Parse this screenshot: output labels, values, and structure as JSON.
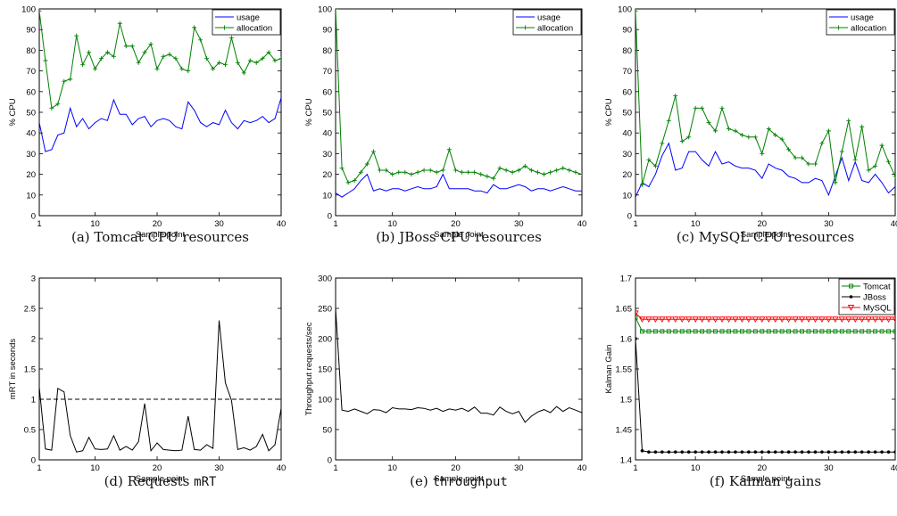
{
  "chart_data": [
    {
      "type": "line",
      "caption": "(a) Tomcat CPU resources",
      "xlabel": "Sample point",
      "ylabel": "% CPU",
      "xlim": [
        1,
        40
      ],
      "ylim": [
        0,
        100
      ],
      "xticks": [
        1,
        10,
        20,
        30,
        40
      ],
      "yticks": [
        0,
        10,
        20,
        30,
        40,
        50,
        60,
        70,
        80,
        90,
        100
      ],
      "legend_position": "top-right",
      "x": [
        1,
        2,
        3,
        4,
        5,
        6,
        7,
        8,
        9,
        10,
        11,
        12,
        13,
        14,
        15,
        16,
        17,
        18,
        19,
        20,
        21,
        22,
        23,
        24,
        25,
        26,
        27,
        28,
        29,
        30,
        31,
        32,
        33,
        34,
        35,
        36,
        37,
        38,
        39,
        40
      ],
      "series": [
        {
          "name": "usage",
          "color": "#0000ff",
          "marker": "none",
          "values": [
            45,
            31,
            32,
            39,
            40,
            52,
            43,
            47,
            42,
            45,
            47,
            46,
            56,
            49,
            49,
            44,
            47,
            48,
            43,
            46,
            47,
            46,
            43,
            42,
            55,
            51,
            45,
            43,
            45,
            44,
            51,
            45,
            42,
            46,
            45,
            46,
            48,
            45,
            47,
            57
          ]
        },
        {
          "name": "allocation",
          "color": "#008000",
          "marker": "plus",
          "values": [
            99,
            75,
            52,
            54,
            65,
            66,
            87,
            73,
            79,
            71,
            76,
            79,
            77,
            93,
            82,
            82,
            74,
            79,
            83,
            71,
            77,
            78,
            76,
            71,
            70,
            91,
            85,
            76,
            71,
            74,
            73,
            86,
            74,
            69,
            75,
            74,
            76,
            79,
            75,
            76
          ]
        }
      ]
    },
    {
      "type": "line",
      "caption": "(b) JBoss CPU resources",
      "xlabel": "Sample point",
      "ylabel": "% CPU",
      "xlim": [
        1,
        40
      ],
      "ylim": [
        0,
        100
      ],
      "xticks": [
        1,
        10,
        20,
        30,
        40
      ],
      "yticks": [
        0,
        10,
        20,
        30,
        40,
        50,
        60,
        70,
        80,
        90,
        100
      ],
      "legend_position": "top-right",
      "x": [
        1,
        2,
        3,
        4,
        5,
        6,
        7,
        8,
        9,
        10,
        11,
        12,
        13,
        14,
        15,
        16,
        17,
        18,
        19,
        20,
        21,
        22,
        23,
        24,
        25,
        26,
        27,
        28,
        29,
        30,
        31,
        32,
        33,
        34,
        35,
        36,
        37,
        38,
        39,
        40
      ],
      "series": [
        {
          "name": "usage",
          "color": "#0000ff",
          "marker": "none",
          "values": [
            11,
            9,
            11,
            13,
            17,
            20,
            12,
            13,
            12,
            13,
            13,
            12,
            13,
            14,
            13,
            13,
            14,
            20,
            13,
            13,
            13,
            13,
            12,
            12,
            11,
            15,
            13,
            13,
            14,
            15,
            14,
            12,
            13,
            13,
            12,
            13,
            14,
            13,
            12,
            12
          ]
        },
        {
          "name": "allocation",
          "color": "#008000",
          "marker": "plus",
          "values": [
            100,
            23,
            16,
            17,
            21,
            25,
            31,
            22,
            22,
            20,
            21,
            21,
            20,
            21,
            22,
            22,
            21,
            22,
            32,
            22,
            21,
            21,
            21,
            20,
            19,
            18,
            23,
            22,
            21,
            22,
            24,
            22,
            21,
            20,
            21,
            22,
            23,
            22,
            21,
            20
          ]
        }
      ]
    },
    {
      "type": "line",
      "caption": "(c) MySQL CPU resources",
      "xlabel": "Sample point",
      "ylabel": "% CPU",
      "xlim": [
        1,
        40
      ],
      "ylim": [
        0,
        100
      ],
      "xticks": [
        1,
        10,
        20,
        30,
        40
      ],
      "yticks": [
        0,
        10,
        20,
        30,
        40,
        50,
        60,
        70,
        80,
        90,
        100
      ],
      "legend_position": "top-right",
      "x": [
        1,
        2,
        3,
        4,
        5,
        6,
        7,
        8,
        9,
        10,
        11,
        12,
        13,
        14,
        15,
        16,
        17,
        18,
        19,
        20,
        21,
        22,
        23,
        24,
        25,
        26,
        27,
        28,
        29,
        30,
        31,
        32,
        33,
        34,
        35,
        36,
        37,
        38,
        39,
        40
      ],
      "series": [
        {
          "name": "usage",
          "color": "#0000ff",
          "marker": "none",
          "values": [
            9,
            16,
            14,
            20,
            29,
            35,
            22,
            23,
            31,
            31,
            27,
            24,
            31,
            25,
            26,
            24,
            23,
            23,
            22,
            18,
            25,
            23,
            22,
            19,
            18,
            16,
            16,
            18,
            17,
            10,
            19,
            28,
            17,
            26,
            17,
            16,
            20,
            16,
            11,
            14
          ]
        },
        {
          "name": "allocation",
          "color": "#008000",
          "marker": "plus",
          "values": [
            99,
            15,
            27,
            24,
            35,
            46,
            58,
            36,
            38,
            52,
            52,
            45,
            41,
            52,
            42,
            41,
            39,
            38,
            38,
            30,
            42,
            39,
            37,
            32,
            28,
            28,
            25,
            25,
            35,
            41,
            16,
            31,
            46,
            27,
            43,
            22,
            24,
            34,
            26,
            19
          ]
        }
      ]
    },
    {
      "type": "line",
      "caption_prefix": "(d) Requests ",
      "caption_code": "mRT",
      "xlabel": "Sample point",
      "ylabel": "mRT in seconds",
      "xlim": [
        1,
        40
      ],
      "ylim": [
        0,
        3
      ],
      "xticks": [
        1,
        10,
        20,
        30,
        40
      ],
      "yticks": [
        0,
        0.5,
        1,
        1.5,
        2,
        2.5,
        3
      ],
      "ytick_labels": [
        "0",
        "0.5",
        "1",
        "1.5",
        "2",
        "2.5",
        "3"
      ],
      "reference_line": {
        "y": 1,
        "style": "dashed"
      },
      "x": [
        1,
        2,
        3,
        4,
        5,
        6,
        7,
        8,
        9,
        10,
        11,
        12,
        13,
        14,
        15,
        16,
        17,
        18,
        19,
        20,
        21,
        22,
        23,
        24,
        25,
        26,
        27,
        28,
        29,
        30,
        31,
        32,
        33,
        34,
        35,
        36,
        37,
        38,
        39,
        40
      ],
      "series": [
        {
          "color": "#000000",
          "marker": "none",
          "values": [
            1.2,
            0.18,
            0.16,
            1.18,
            1.12,
            0.4,
            0.13,
            0.15,
            0.37,
            0.18,
            0.17,
            0.18,
            0.4,
            0.16,
            0.22,
            0.16,
            0.3,
            0.93,
            0.15,
            0.28,
            0.17,
            0.16,
            0.15,
            0.16,
            0.72,
            0.17,
            0.16,
            0.25,
            0.19,
            2.3,
            1.27,
            0.98,
            0.17,
            0.2,
            0.16,
            0.22,
            0.42,
            0.15,
            0.25,
            0.85
          ]
        }
      ]
    },
    {
      "type": "line",
      "caption_code": "throughput",
      "caption_prefix": "(e) ",
      "xlabel": "Sample point",
      "ylabel": "Throughput requests/sec",
      "xlim": [
        1,
        40
      ],
      "ylim": [
        0,
        300
      ],
      "xticks": [
        1,
        10,
        20,
        30,
        40
      ],
      "yticks": [
        0,
        50,
        100,
        150,
        200,
        250,
        300
      ],
      "x": [
        1,
        2,
        3,
        4,
        5,
        6,
        7,
        8,
        9,
        10,
        11,
        12,
        13,
        14,
        15,
        16,
        17,
        18,
        19,
        20,
        21,
        22,
        23,
        24,
        25,
        26,
        27,
        28,
        29,
        30,
        31,
        32,
        33,
        34,
        35,
        36,
        37,
        38,
        39,
        40
      ],
      "series": [
        {
          "color": "#000000",
          "marker": "none",
          "values": [
            250,
            82,
            80,
            84,
            80,
            76,
            83,
            82,
            78,
            86,
            84,
            84,
            83,
            86,
            85,
            82,
            85,
            80,
            84,
            82,
            85,
            80,
            87,
            77,
            77,
            74,
            87,
            80,
            76,
            80,
            62,
            72,
            79,
            83,
            78,
            88,
            80,
            86,
            82,
            78
          ]
        }
      ]
    },
    {
      "type": "line",
      "caption": "(f) Kalman gains",
      "xlabel": "Sample point",
      "ylabel": "Kalman Gain",
      "xlim": [
        1,
        40
      ],
      "ylim": [
        1.4,
        1.7
      ],
      "xticks": [
        1,
        10,
        20,
        30,
        40
      ],
      "yticks": [
        1.4,
        1.45,
        1.5,
        1.55,
        1.6,
        1.65,
        1.7
      ],
      "ytick_labels": [
        "1.4",
        "1.45",
        "1.5",
        "1.55",
        "1.6",
        "1.65",
        "1.7"
      ],
      "legend_position": "top-right",
      "x": [
        1,
        2,
        3,
        4,
        5,
        6,
        7,
        8,
        9,
        10,
        11,
        12,
        13,
        14,
        15,
        16,
        17,
        18,
        19,
        20,
        21,
        22,
        23,
        24,
        25,
        26,
        27,
        28,
        29,
        30,
        31,
        32,
        33,
        34,
        35,
        36,
        37,
        38,
        39,
        40
      ],
      "series": [
        {
          "name": "Tomcat",
          "color": "#008000",
          "marker": "square",
          "values": [
            1.635,
            1.612,
            1.612,
            1.612,
            1.612,
            1.612,
            1.612,
            1.612,
            1.612,
            1.612,
            1.612,
            1.612,
            1.612,
            1.612,
            1.612,
            1.612,
            1.612,
            1.612,
            1.612,
            1.612,
            1.612,
            1.612,
            1.612,
            1.612,
            1.612,
            1.612,
            1.612,
            1.612,
            1.612,
            1.612,
            1.612,
            1.612,
            1.612,
            1.612,
            1.612,
            1.612,
            1.612,
            1.612,
            1.612,
            1.612
          ]
        },
        {
          "name": "JBoss",
          "color": "#000000",
          "marker": "dot",
          "values": [
            1.6,
            1.415,
            1.413,
            1.413,
            1.413,
            1.413,
            1.413,
            1.413,
            1.413,
            1.413,
            1.413,
            1.413,
            1.413,
            1.413,
            1.413,
            1.413,
            1.413,
            1.413,
            1.413,
            1.413,
            1.413,
            1.413,
            1.413,
            1.413,
            1.413,
            1.413,
            1.413,
            1.413,
            1.413,
            1.413,
            1.413,
            1.413,
            1.413,
            1.413,
            1.413,
            1.413,
            1.413,
            1.413,
            1.413,
            1.413
          ]
        },
        {
          "name": "MySQL",
          "color": "#ff0000",
          "marker": "triangle-down",
          "values": [
            1.642,
            1.632,
            1.632,
            1.632,
            1.632,
            1.632,
            1.632,
            1.632,
            1.632,
            1.632,
            1.632,
            1.632,
            1.632,
            1.632,
            1.632,
            1.632,
            1.632,
            1.632,
            1.632,
            1.632,
            1.632,
            1.632,
            1.632,
            1.632,
            1.632,
            1.632,
            1.632,
            1.632,
            1.632,
            1.632,
            1.632,
            1.632,
            1.632,
            1.632,
            1.632,
            1.632,
            1.632,
            1.632,
            1.632,
            1.632
          ]
        }
      ]
    }
  ]
}
